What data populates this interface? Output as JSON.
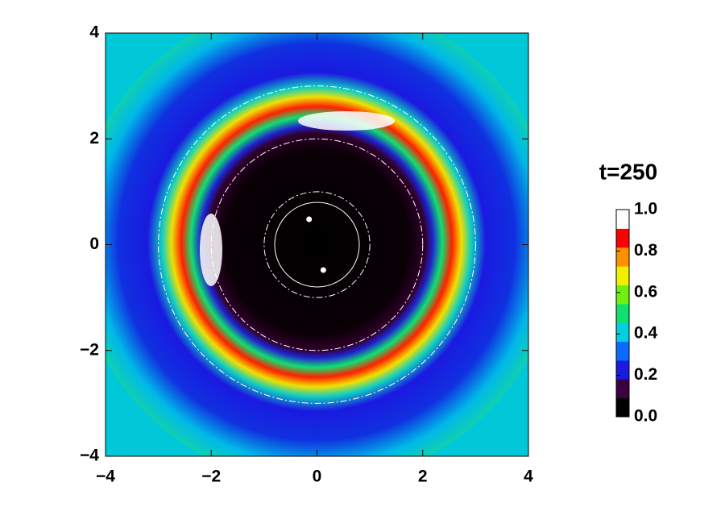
{
  "chart_data": {
    "type": "heatmap",
    "title": "t=250",
    "xlim": [
      -4,
      4
    ],
    "ylim": [
      -4,
      4
    ],
    "xticks": [
      {
        "value": -4,
        "label": "−4"
      },
      {
        "value": -2,
        "label": "−2"
      },
      0,
      2,
      4
    ],
    "yticks": [
      {
        "value": -4,
        "label": "−4"
      },
      {
        "value": -2,
        "label": "−2"
      },
      0,
      2,
      4
    ],
    "points": {
      "x": [
        -0.15,
        0.12
      ],
      "y": [
        0.48,
        -0.48
      ],
      "color": "#ffffff"
    },
    "circles": {
      "radii": [
        1,
        2,
        3
      ],
      "style": "dash-dot"
    },
    "inner_circle": {
      "radius": 0.8
    },
    "colorbar": {
      "lim": [
        0,
        1
      ],
      "ticks": [
        {
          "value": 0,
          "label": "0.0"
        },
        {
          "value": 0.2,
          "label": "0.2"
        },
        {
          "value": 0.4,
          "label": "0.4"
        },
        {
          "value": 0.6,
          "label": "0.6"
        },
        {
          "value": 0.8,
          "label": "0.8"
        },
        {
          "value": 1,
          "label": "1.0"
        }
      ],
      "colors": [
        "#000000",
        "#3a0040",
        "#1a1ae0",
        "#0a6cff",
        "#00d0e0",
        "#10e070",
        "#70f010",
        "#f0f000",
        "#ff9000",
        "#ff0000",
        "#ffffff"
      ]
    }
  }
}
